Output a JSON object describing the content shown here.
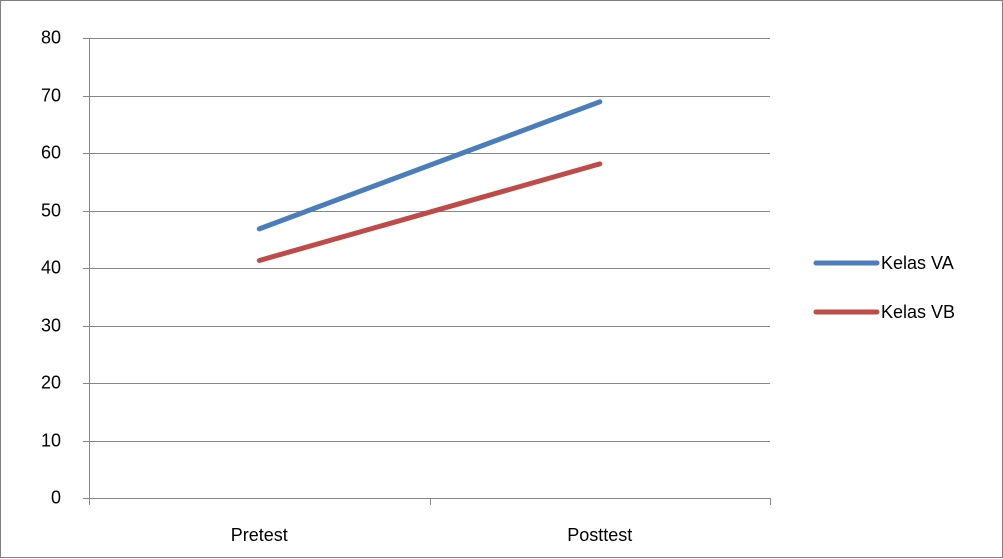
{
  "chart_data": {
    "type": "line",
    "categories": [
      "Pretest",
      "Posttest"
    ],
    "series": [
      {
        "name": "Kelas VA",
        "values": [
          46.8,
          68.9
        ],
        "color": "#4a7ebb"
      },
      {
        "name": "Kelas VB",
        "values": [
          41.3,
          58.1
        ],
        "color": "#be4b48"
      }
    ],
    "yticks": [
      "0",
      "10",
      "20",
      "30",
      "40",
      "50",
      "60",
      "70",
      "80"
    ],
    "ylim": [
      0,
      80
    ],
    "grid": true,
    "gridline_color": "#868686",
    "legend_position": "right"
  }
}
